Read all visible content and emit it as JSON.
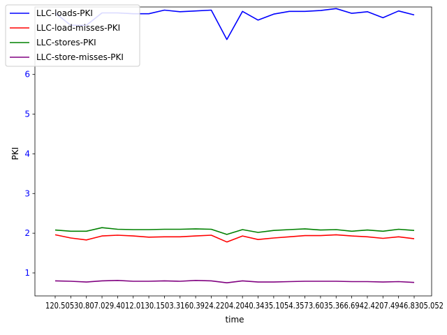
{
  "chart_data": {
    "type": "line",
    "xlabel": "time",
    "ylabel": "PKI",
    "ylim": [
      0.42,
      7.7
    ],
    "yticks": [
      1,
      2,
      3,
      4,
      5,
      6
    ],
    "x_tick_text": "120.50530.807.029.4012.0130.1503.3160.3924.2204.2040.3435.1054.3573.6035.366.6942.4207.4946.8305.052",
    "legend_position": "upper-left",
    "series": [
      {
        "name": "LLC-loads-PKI",
        "color": "#0000ff",
        "values": [
          7.55,
          7.24,
          7.24,
          7.55,
          7.55,
          7.53,
          7.53,
          7.62,
          7.58,
          7.6,
          7.62,
          6.88,
          7.59,
          7.37,
          7.52,
          7.59,
          7.59,
          7.61,
          7.66,
          7.54,
          7.58,
          7.43,
          7.6,
          7.5
        ]
      },
      {
        "name": "LLC-load-misses-PKI",
        "color": "#ff0000",
        "values": [
          1.96,
          1.88,
          1.83,
          1.93,
          1.95,
          1.93,
          1.9,
          1.91,
          1.91,
          1.93,
          1.95,
          1.78,
          1.93,
          1.84,
          1.88,
          1.91,
          1.94,
          1.94,
          1.96,
          1.93,
          1.91,
          1.87,
          1.91,
          1.86
        ]
      },
      {
        "name": "LLC-stores-PKI",
        "color": "#008000",
        "values": [
          2.08,
          2.05,
          2.05,
          2.14,
          2.1,
          2.09,
          2.09,
          2.1,
          2.1,
          2.11,
          2.1,
          1.97,
          2.09,
          2.02,
          2.07,
          2.09,
          2.11,
          2.08,
          2.09,
          2.05,
          2.08,
          2.05,
          2.1,
          2.07
        ]
      },
      {
        "name": "LLC-store-misses-PKI",
        "color": "#800080",
        "values": [
          0.8,
          0.79,
          0.77,
          0.8,
          0.81,
          0.79,
          0.79,
          0.8,
          0.79,
          0.81,
          0.8,
          0.75,
          0.8,
          0.77,
          0.77,
          0.78,
          0.79,
          0.79,
          0.79,
          0.78,
          0.78,
          0.77,
          0.78,
          0.76
        ]
      }
    ],
    "colors": {
      "axis": "#000000",
      "tick_labels": "#0000ff"
    }
  }
}
